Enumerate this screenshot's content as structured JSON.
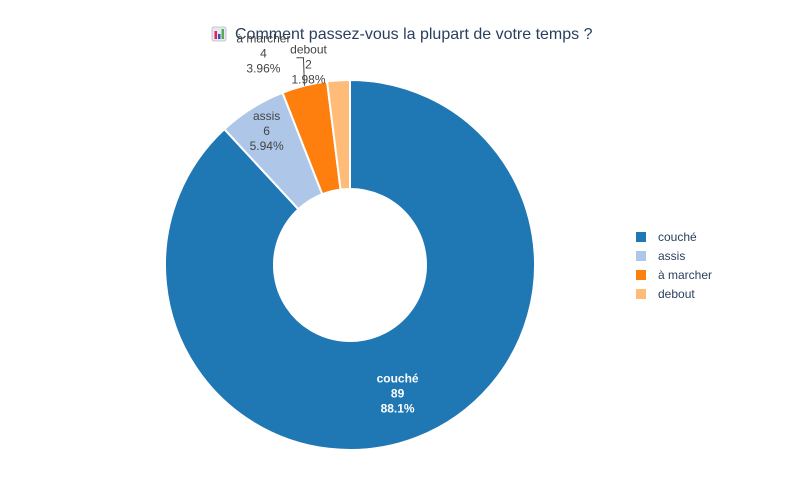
{
  "chart_data": {
    "type": "pie",
    "hole": true,
    "title": "Comment passez-vous la plupart de votre temps ?",
    "title_icon": "bar-chart-icon",
    "categories": [
      "couché",
      "assis",
      "à marcher",
      "debout"
    ],
    "values": [
      89,
      6,
      4,
      2
    ],
    "percent_labels": [
      "88.1%",
      "5.94%",
      "3.96%",
      "1.98%"
    ],
    "colors": [
      "#1f77b4",
      "#aec7e8",
      "#ff7f0e",
      "#ffbb78"
    ],
    "label_colors": [
      "#ffffff",
      "#444444",
      "#444444",
      "#444444"
    ],
    "legend": {
      "position": "right",
      "items": [
        "couché",
        "assis",
        "à marcher",
        "debout"
      ]
    }
  }
}
